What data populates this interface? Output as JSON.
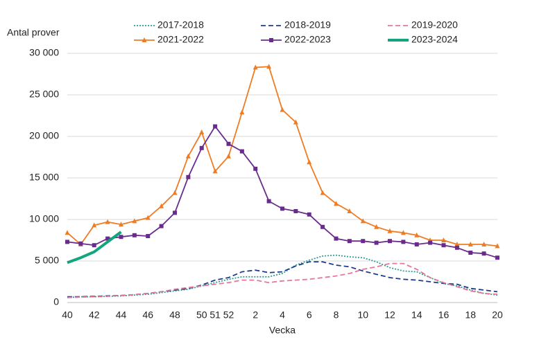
{
  "chart_data": {
    "type": "line",
    "y_label": "Antal prover",
    "x_label": "Vecka",
    "categories": [
      "40",
      null,
      "42",
      null,
      "44",
      null,
      "46",
      null,
      "48",
      null,
      "50",
      "51",
      "52",
      null,
      "2",
      null,
      "4",
      null,
      "6",
      null,
      "8",
      null,
      "10",
      null,
      "12",
      null,
      "14",
      null,
      "16",
      null,
      "18",
      null,
      "20"
    ],
    "ylim": [
      0,
      30000
    ],
    "yticks": [
      0,
      {
        "value": 5000,
        "label": "5 000"
      },
      {
        "value": 10000,
        "label": "10 000"
      },
      {
        "value": 15000,
        "label": "15 000"
      },
      {
        "value": 20000,
        "label": "20 000"
      },
      {
        "value": 25000,
        "label": "25 000"
      },
      {
        "value": 30000,
        "label": "30 000"
      }
    ],
    "grid": true,
    "legend": "top",
    "series": [
      {
        "name": "2017-2018",
        "color": "#2a9d8f",
        "dash": "dotted",
        "width": 1.8,
        "marker": "none",
        "values": [
          600,
          700,
          700,
          750,
          800,
          900,
          1000,
          1200,
          1400,
          1600,
          2000,
          2400,
          2800,
          3100,
          3100,
          3100,
          3500,
          4500,
          5100,
          5600,
          5700,
          5500,
          5400,
          4900,
          4200,
          3800,
          3700,
          3000,
          2300,
          2000,
          1500,
          1100,
          900
        ]
      },
      {
        "name": "2018-2019",
        "color": "#1f3c88",
        "dash": "dashed",
        "width": 1.8,
        "marker": "none",
        "values": [
          700,
          700,
          750,
          800,
          850,
          950,
          1100,
          1300,
          1500,
          1700,
          2100,
          2700,
          3000,
          3700,
          3900,
          3600,
          3700,
          4400,
          4900,
          4900,
          4500,
          4300,
          3800,
          3400,
          3000,
          2800,
          2700,
          2500,
          2300,
          2200,
          1700,
          1500,
          1300
        ]
      },
      {
        "name": "2019-2020",
        "color": "#e8759a",
        "dash": "dashed",
        "width": 1.8,
        "marker": "none",
        "values": [
          600,
          650,
          700,
          750,
          850,
          950,
          1100,
          1300,
          1600,
          1800,
          2000,
          2200,
          2400,
          2700,
          2700,
          2400,
          2600,
          2700,
          2800,
          3000,
          3200,
          3500,
          4000,
          4300,
          4700,
          4700,
          4000,
          3000,
          2400,
          1900,
          1400,
          1100,
          1000
        ]
      },
      {
        "name": "2021-2022",
        "color": "#ef7b22",
        "dash": "solid",
        "width": 1.8,
        "marker": "triangle",
        "values": [
          8400,
          7000,
          9300,
          9700,
          9400,
          9800,
          10200,
          11600,
          13200,
          17600,
          20500,
          15800,
          17600,
          22900,
          28300,
          28400,
          23200,
          21700,
          16900,
          13200,
          11900,
          11000,
          9800,
          9100,
          8600,
          8400,
          8100,
          7500,
          7500,
          7000,
          7000,
          7000,
          6800
        ]
      },
      {
        "name": "2022-2023",
        "color": "#6a2c8c",
        "dash": "solid",
        "width": 1.8,
        "marker": "square",
        "values": [
          7300,
          7100,
          6900,
          7700,
          7900,
          8100,
          8000,
          9200,
          10800,
          15100,
          18600,
          21200,
          19100,
          18200,
          16100,
          12200,
          11300,
          11000,
          10600,
          9100,
          7700,
          7400,
          7400,
          7200,
          7400,
          7300,
          7000,
          7200,
          6900,
          6600,
          6000,
          5900,
          5400
        ]
      },
      {
        "name": "2023-2024",
        "color": "#13a67e",
        "dash": "solid",
        "width": 4,
        "marker": "none",
        "values": [
          4800,
          5400,
          6100,
          7300,
          8500,
          null,
          null,
          null,
          null,
          null,
          null,
          null,
          null,
          null,
          null,
          null,
          null,
          null,
          null,
          null,
          null,
          null,
          null,
          null,
          null,
          null,
          null,
          null,
          null,
          null,
          null,
          null,
          null
        ]
      }
    ]
  }
}
